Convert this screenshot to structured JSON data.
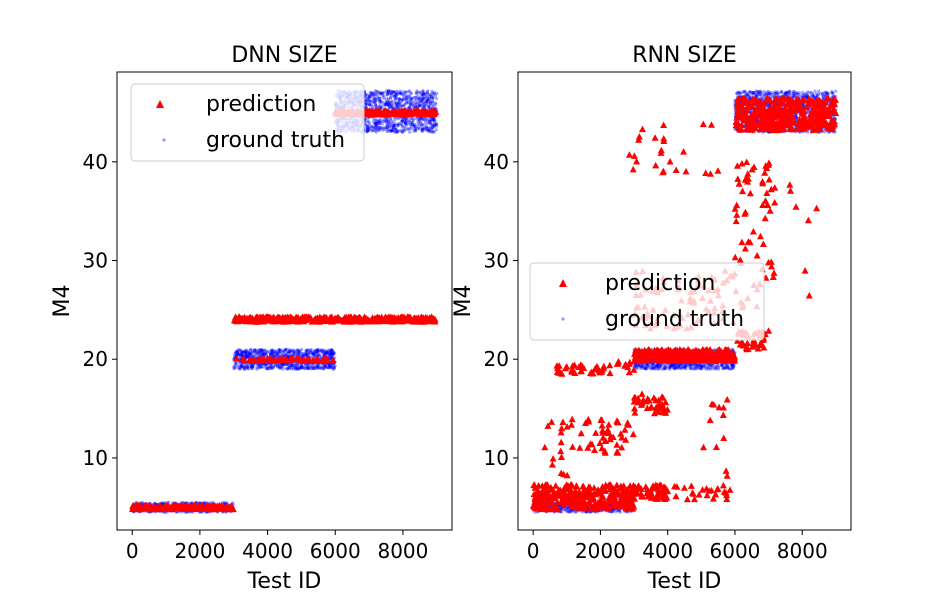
{
  "chart_data": [
    {
      "type": "scatter",
      "title": "DNN SIZE",
      "xlabel": "Test ID",
      "ylabel": "M4",
      "xlim": [
        -450,
        9450
      ],
      "ylim": [
        2.7,
        49.1
      ],
      "xticks": [
        0,
        2000,
        4000,
        6000,
        8000
      ],
      "xtick_labels": [
        "0",
        "2000",
        "4000",
        "6000",
        "8000"
      ],
      "yticks": [
        10,
        20,
        30,
        40
      ],
      "ytick_labels": [
        "10",
        "20",
        "30",
        "40"
      ],
      "grid": false,
      "legend_placement": "upper left",
      "series": [
        {
          "name": "prediction",
          "marker": "triangle",
          "color": "#ff0000",
          "regions": [
            {
              "x": [
                0,
                3000
              ],
              "y": [
                4.8,
                5.2
              ],
              "count": 200
            },
            {
              "x": [
                3000,
                9000
              ],
              "y": [
                23.8,
                24.3
              ],
              "count": 400
            },
            {
              "x": [
                3000,
                6000
              ],
              "y": [
                19.8,
                20.1
              ],
              "count": 60
            },
            {
              "x": [
                6000,
                9000
              ],
              "y": [
                44.8,
                45.2
              ],
              "count": 200
            }
          ]
        },
        {
          "name": "ground truth",
          "marker": "point",
          "color": "#0000ff",
          "regions": [
            {
              "x": [
                0,
                3000
              ],
              "y": [
                4.5,
                5.5
              ],
              "count": 450
            },
            {
              "x": [
                3000,
                6000
              ],
              "y": [
                19,
                21
              ],
              "count": 900
            },
            {
              "x": [
                6000,
                9000
              ],
              "y": [
                43,
                47.2
              ],
              "count": 1200
            }
          ]
        }
      ]
    },
    {
      "type": "scatter",
      "title": "RNN SIZE",
      "xlabel": "Test ID",
      "ylabel": "M4",
      "xlim": [
        -450,
        9450
      ],
      "ylim": [
        2.7,
        49.1
      ],
      "xticks": [
        0,
        2000,
        4000,
        6000,
        8000
      ],
      "xtick_labels": [
        "0",
        "2000",
        "4000",
        "6000",
        "8000"
      ],
      "yticks": [
        10,
        20,
        30,
        40
      ],
      "ytick_labels": [
        "10",
        "20",
        "30",
        "40"
      ],
      "grid": false,
      "legend_placement": "center left",
      "series": [
        {
          "name": "prediction",
          "marker": "triangle",
          "color": "#ff0000",
          "regions": [
            {
              "x": [
                0,
                3000
              ],
              "y": [
                4.8,
                7.3
              ],
              "count": 300
            },
            {
              "x": [
                3000,
                4000
              ],
              "y": [
                5.8,
                7.3
              ],
              "count": 60
            },
            {
              "x": [
                4200,
                6000
              ],
              "y": [
                5.8,
                7.3
              ],
              "count": 25
            },
            {
              "x": [
                300,
                1200
              ],
              "y": [
                8,
                14.5
              ],
              "count": 18
            },
            {
              "x": [
                1300,
                3000
              ],
              "y": [
                10.5,
                14
              ],
              "count": 45
            },
            {
              "x": [
                700,
                2300
              ],
              "y": [
                18.5,
                19.5
              ],
              "count": 35
            },
            {
              "x": [
                2500,
                3000
              ],
              "y": [
                18.5,
                19.8
              ],
              "count": 10
            },
            {
              "x": [
                3000,
                4000
              ],
              "y": [
                14.5,
                16.5
              ],
              "count": 40
            },
            {
              "x": [
                5000,
                5800
              ],
              "y": [
                8,
                16
              ],
              "count": 12
            },
            {
              "x": [
                3000,
                6000
              ],
              "y": [
                19.8,
                21
              ],
              "count": 300
            },
            {
              "x": [
                3000,
                6000
              ],
              "y": [
                23,
                29
              ],
              "count": 80
            },
            {
              "x": [
                2800,
                5500
              ],
              "y": [
                38.5,
                44
              ],
              "count": 25
            },
            {
              "x": [
                6000,
                7000
              ],
              "y": [
                21,
                23
              ],
              "count": 40
            },
            {
              "x": [
                6000,
                7100
              ],
              "y": [
                25,
                40
              ],
              "count": 60
            },
            {
              "x": [
                7000,
                8500
              ],
              "y": [
                22,
                38
              ],
              "count": 12
            },
            {
              "x": [
                6000,
                9000
              ],
              "y": [
                43.2,
                46.5
              ],
              "count": 400
            }
          ]
        },
        {
          "name": "ground truth",
          "marker": "point",
          "color": "#0000ff",
          "regions": [
            {
              "x": [
                0,
                3000
              ],
              "y": [
                4.5,
                5.5
              ],
              "count": 450
            },
            {
              "x": [
                3000,
                6000
              ],
              "y": [
                19,
                21
              ],
              "count": 900
            },
            {
              "x": [
                6000,
                9000
              ],
              "y": [
                43,
                47.2
              ],
              "count": 1200
            }
          ]
        }
      ]
    }
  ]
}
